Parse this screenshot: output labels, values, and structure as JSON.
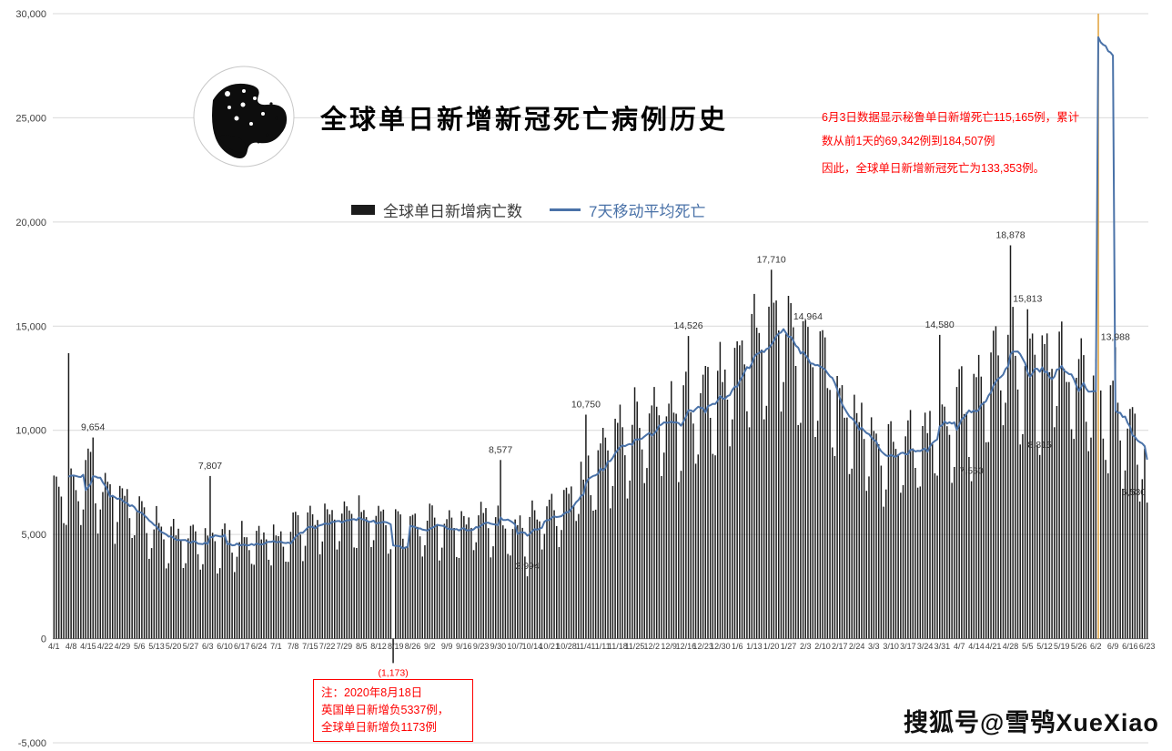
{
  "page": {
    "background": "#ffffff"
  },
  "header": {
    "title": "全球单日新增新冠死亡病例历史",
    "globe_icon": "black-and-white-earth-globe"
  },
  "legend": {
    "bars_label": "全球单日新增病亡数",
    "ma_label": "7天移动平均死亡"
  },
  "annotations": {
    "peru_paragraph_1": "6月3日数据显示秘鲁单日新增死亡115,165例，累计数从前1天的69,342例到184,507例",
    "peru_paragraph_2": "因此，全球单日新增新冠死亡为133,353例。",
    "note_line_1": "注：2020年8月18日",
    "note_line_2": "英国单日新增负5337例，",
    "note_line_3": "全球单日新增负1173例"
  },
  "footer": {
    "watermark": "搜狐号@雪鸮XueXiao"
  },
  "chart_data": {
    "type": "bar",
    "title": "全球单日新增新冠死亡病例历史",
    "ylim": [
      -5000,
      30000
    ],
    "y_ticks": [
      30000,
      25000,
      20000,
      15000,
      10000,
      5000,
      0,
      -5000
    ],
    "y_tick_labels": [
      "30,000",
      "25,000",
      "20,000",
      "15,000",
      "10,000",
      "5,000",
      "0",
      "-5,000"
    ],
    "grid": true,
    "legend_position": "top-center",
    "x_start_date": "2020-04-01",
    "days_total": 449,
    "x_tick_interval_days": 7,
    "x_tick_labels": [
      "4/1",
      "4/8",
      "4/15",
      "4/22",
      "4/29",
      "5/6",
      "5/13",
      "5/20",
      "5/27",
      "6/3",
      "6/10",
      "6/17",
      "6/24",
      "7/1",
      "7/8",
      "7/15",
      "7/22",
      "7/29",
      "8/5",
      "8/12",
      "8/19",
      "8/26",
      "9/2",
      "9/9",
      "9/16",
      "9/23",
      "9/30",
      "10/7",
      "10/14",
      "10/21",
      "10/28",
      "11/4",
      "11/11",
      "11/18",
      "11/25",
      "12/2",
      "12/9",
      "12/16",
      "12/23",
      "12/30",
      "1/6",
      "1/13",
      "1/20",
      "1/27",
      "2/3",
      "2/10",
      "2/17",
      "2/24",
      "3/3",
      "3/10",
      "3/17",
      "3/24",
      "3/31",
      "4/7",
      "4/14",
      "4/21",
      "4/28",
      "5/5",
      "5/12",
      "5/19",
      "5/26",
      "6/2",
      "6/9",
      "6/16",
      "6/23"
    ],
    "series": [
      {
        "name": "全球单日新增病亡数",
        "type": "bar",
        "color": "#1c1c1c"
      },
      {
        "name": "7天移动平均死亡",
        "type": "line",
        "color": "#4a72a8",
        "derived": "trailing 7-day mean of daily bars"
      }
    ],
    "weekly_ma_anchors": [
      6600,
      7200,
      7500,
      7000,
      6500,
      5900,
      5200,
      4700,
      4500,
      4800,
      4500,
      4600,
      4700,
      4800,
      5100,
      5400,
      5700,
      5900,
      5900,
      5700,
      5500,
      5400,
      5500,
      5300,
      5200,
      5500,
      5400,
      5300,
      5500,
      5900,
      6600,
      7400,
      8400,
      9300,
      10000,
      10300,
      10600,
      11000,
      11300,
      11900,
      13100,
      14000,
      14400,
      14300,
      13600,
      12400,
      11100,
      10200,
      9500,
      9000,
      9100,
      9600,
      10100,
      10800,
      11600,
      12600,
      13200,
      13300,
      13200,
      12900,
      12300,
      10900,
      10700,
      10100,
      8600
    ],
    "weekday_factors_sun_to_sat": [
      0.74,
      0.8,
      1.08,
      1.13,
      1.11,
      1.06,
      0.95
    ],
    "start_weekday": 3,
    "noise_amplitude": 0.09,
    "overrides": [
      {
        "i": 6,
        "date": "2020-04-07",
        "value": 13700
      },
      {
        "i": 16,
        "date": "2020-04-17",
        "value": 9654,
        "label": "9,654"
      },
      {
        "i": 64,
        "date": "2020-06-04",
        "value": 7807,
        "label": "7,807"
      },
      {
        "i": 139,
        "date": "2020-08-18",
        "value": -1173,
        "label": "(1,173)",
        "label_color": "#ff0000"
      },
      {
        "i": 183,
        "date": "2020-10-01",
        "value": 8577,
        "label": "8,577"
      },
      {
        "i": 194,
        "date": "2020-10-12",
        "value": 2994,
        "label": "2,994"
      },
      {
        "i": 218,
        "date": "2020-11-05",
        "value": 10750,
        "label": "10,750"
      },
      {
        "i": 260,
        "date": "2020-12-17",
        "value": 14526,
        "label": "14,526"
      },
      {
        "i": 294,
        "date": "2021-01-20",
        "value": 17710,
        "label": "17,710"
      },
      {
        "i": 309,
        "date": "2021-02-04",
        "value": 14964,
        "label": "14,964"
      },
      {
        "i": 363,
        "date": "2021-03-30",
        "value": 14580,
        "label": "14,580"
      },
      {
        "i": 376,
        "date": "2021-04-12",
        "value": 7560,
        "label": "7,560"
      },
      {
        "i": 392,
        "date": "2021-04-28",
        "value": 18878,
        "label": "18,878"
      },
      {
        "i": 399,
        "date": "2021-05-05",
        "value": 15813,
        "label": "15,813"
      },
      {
        "i": 404,
        "date": "2021-05-10",
        "value": 8815,
        "label": "8,815"
      },
      {
        "i": 428,
        "date": "2021-06-03",
        "value": 133353,
        "clip_display_to": 30000,
        "color": "#e2a23b"
      },
      {
        "i": 435,
        "date": "2021-06-10",
        "value": 13988,
        "label": "13,988"
      },
      {
        "i": 448,
        "date": "2021-06-23",
        "value": 6530,
        "label": "6,530"
      }
    ],
    "colors": {
      "bar": "#1c1c1c",
      "ma_line": "#4a72a8",
      "anomaly_bar": "#e2a23b",
      "grid": "#d9d9d9",
      "zero_axis": "#7f7f7f",
      "axis_text": "#404040",
      "value_label": "#333333",
      "negative_label": "#ff0000",
      "annotation_red": "#ff0000"
    }
  }
}
